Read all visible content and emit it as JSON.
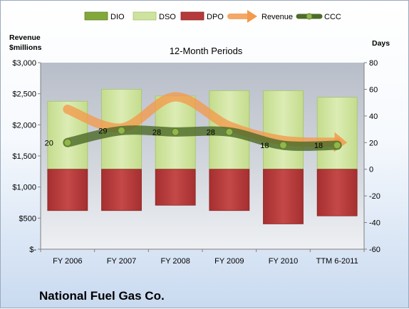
{
  "chart_data": {
    "type": "bar",
    "title": "12-Month Periods",
    "company": "National Fuel Gas Co.",
    "left_axis": {
      "title_line1": "Revenue",
      "title_line2": "$millions",
      "range": [
        0,
        3000
      ],
      "ticks": [
        0,
        500,
        1000,
        1500,
        2000,
        2500,
        3000
      ],
      "tick_labels": [
        "$-",
        "$500",
        "$1,000",
        "$1,500",
        "$2,000",
        "$2,500",
        "$3,000"
      ]
    },
    "right_axis": {
      "title": "Days",
      "range": [
        -60,
        80
      ],
      "ticks": [
        -60,
        -40,
        -20,
        0,
        20,
        40,
        60,
        80
      ],
      "tick_labels": [
        "-60",
        "-40",
        "-20",
        "0",
        "20",
        "40",
        "60",
        "80"
      ]
    },
    "categories": [
      "FY 2006",
      "FY 2007",
      "FY 2008",
      "FY 2009",
      "FY 2010",
      "TTM 6-2011"
    ],
    "legend": {
      "position": "top",
      "items": [
        {
          "name": "DIO",
          "color": "#84a73a"
        },
        {
          "name": "DSO",
          "color": "#cfe3a0"
        },
        {
          "name": "DPO",
          "color": "#b53a3a"
        },
        {
          "name": "Revenue",
          "color": "#f39a4c"
        },
        {
          "name": "CCC",
          "color": "#4e6b2a"
        }
      ]
    },
    "series": [
      {
        "name": "DIO",
        "axis": "right",
        "values": [
          0,
          0,
          0,
          0,
          0,
          0
        ]
      },
      {
        "name": "DSO",
        "axis": "right",
        "values": [
          51,
          60,
          55,
          59,
          59,
          54
        ]
      },
      {
        "name": "DPO",
        "axis": "right",
        "values": [
          -31,
          -31,
          -27,
          -31,
          -41,
          -35
        ]
      },
      {
        "name": "Revenue",
        "axis": "left",
        "values": [
          2250,
          1950,
          2450,
          1980,
          1750,
          1720
        ]
      },
      {
        "name": "CCC",
        "axis": "right",
        "values": [
          20,
          29,
          28,
          28,
          18,
          18
        ]
      }
    ],
    "ccc_labels": [
      "20",
      "29",
      "28",
      "28",
      "18",
      "18"
    ],
    "grid": false
  }
}
